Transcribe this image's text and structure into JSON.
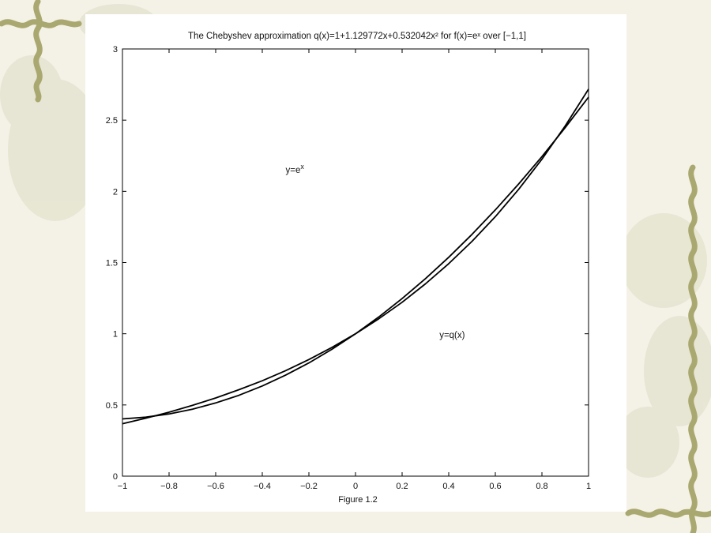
{
  "chart_data": {
    "type": "line",
    "title": "The Chebyshev approximation q(x)=1+1.129772x+0.532042x² for f(x)=eˣ over [−1,1]",
    "xlabel": "Figure 1.2",
    "ylabel": "",
    "xlim": [
      -1,
      1
    ],
    "ylim": [
      0,
      3
    ],
    "x_ticks": [
      -1,
      -0.8,
      -0.6,
      -0.4,
      -0.2,
      0,
      0.2,
      0.4,
      0.6,
      0.8,
      1
    ],
    "x_tick_labels": [
      "−1",
      "−0.8",
      "−0.6",
      "−0.4",
      "−0.2",
      "0",
      "0.2",
      "0.4",
      "0.6",
      "0.8",
      "1"
    ],
    "y_ticks": [
      0,
      0.5,
      1,
      1.5,
      2,
      2.5,
      3
    ],
    "y_tick_labels": [
      "0",
      "0.5",
      "1",
      "1.5",
      "2",
      "2.5",
      "3"
    ],
    "grid": false,
    "series": [
      {
        "name": "y=eˣ",
        "x": [
          -1,
          -0.9,
          -0.8,
          -0.7,
          -0.6,
          -0.5,
          -0.4,
          -0.3,
          -0.2,
          -0.1,
          0,
          0.1,
          0.2,
          0.3,
          0.4,
          0.5,
          0.6,
          0.7,
          0.8,
          0.9,
          1
        ],
        "y": [
          0.368,
          0.407,
          0.449,
          0.497,
          0.549,
          0.607,
          0.67,
          0.741,
          0.819,
          0.905,
          1.0,
          1.105,
          1.221,
          1.35,
          1.492,
          1.649,
          1.822,
          2.014,
          2.226,
          2.46,
          2.718
        ]
      },
      {
        "name": "y=q(x)",
        "x": [
          -1,
          -0.9,
          -0.8,
          -0.7,
          -0.6,
          -0.5,
          -0.4,
          -0.3,
          -0.2,
          -0.1,
          0,
          0.1,
          0.2,
          0.3,
          0.4,
          0.5,
          0.6,
          0.7,
          0.8,
          0.9,
          1
        ],
        "y": [
          0.402,
          0.414,
          0.437,
          0.47,
          0.514,
          0.568,
          0.633,
          0.709,
          0.795,
          0.892,
          1.0,
          1.118,
          1.247,
          1.387,
          1.537,
          1.698,
          1.87,
          2.052,
          2.244,
          2.448,
          2.662
        ]
      }
    ],
    "annotations": [
      {
        "base": "y=e",
        "sup": "x",
        "x": -0.3,
        "y": 2.13
      },
      {
        "base": "y=q(x)",
        "sup": "",
        "x": 0.36,
        "y": 0.97
      }
    ],
    "line_color": "#000000"
  }
}
